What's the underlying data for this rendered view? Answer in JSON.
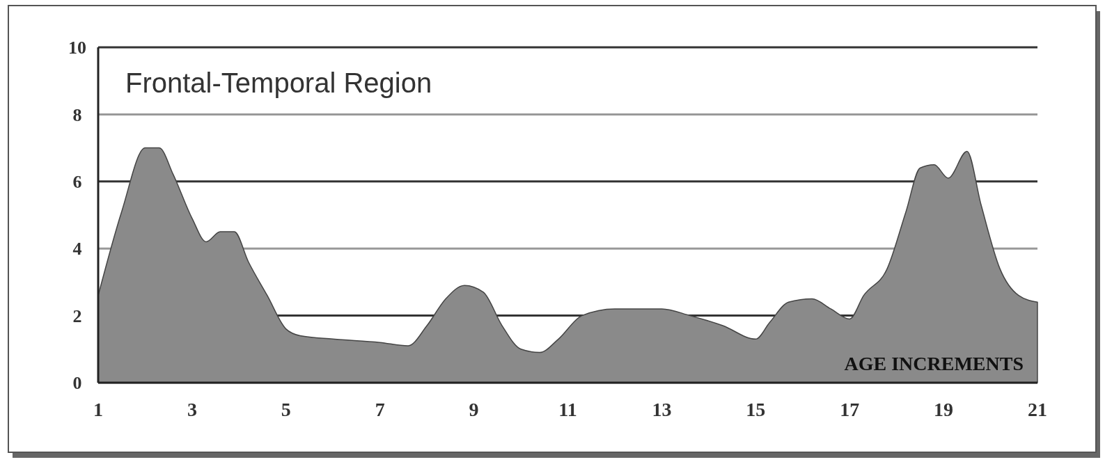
{
  "chart_data": {
    "type": "area",
    "title": "Frontal-Temporal Region",
    "xlabel": "AGE INCREMENTS",
    "x": [
      1,
      1.5,
      2,
      2.3,
      2.6,
      3,
      3.3,
      3.6,
      3.9,
      4.2,
      4.6,
      5,
      5.3,
      6,
      7,
      7.6,
      8,
      8.4,
      8.8,
      9.2,
      9.6,
      10,
      10.4,
      10.8,
      11.3,
      12,
      13,
      13.6,
      14.3,
      15,
      15.3,
      15.7,
      16.2,
      16.6,
      17,
      17.3,
      17.8,
      18.2,
      18.5,
      18.8,
      19.1,
      19.5,
      19.8,
      20.2,
      20.6,
      21
    ],
    "series": [
      {
        "color": "#8a8a8a",
        "values": [
          2.6,
          5.1,
          7.0,
          7.0,
          6.2,
          4.9,
          4.2,
          4.5,
          4.5,
          3.6,
          2.6,
          1.6,
          1.4,
          1.3,
          1.2,
          1.1,
          1.7,
          2.5,
          2.9,
          2.7,
          1.7,
          1.0,
          0.9,
          1.3,
          2.0,
          2.2,
          2.2,
          2.0,
          1.7,
          1.3,
          1.8,
          2.4,
          2.5,
          2.2,
          1.9,
          2.6,
          3.4,
          5.1,
          6.4,
          6.5,
          6.1,
          6.9,
          5.3,
          3.4,
          2.6,
          2.4
        ]
      }
    ],
    "xlim": [
      1,
      21
    ],
    "xticks": [
      1,
      3,
      5,
      7,
      9,
      11,
      13,
      15,
      17,
      19,
      21
    ],
    "ylim": [
      0,
      10
    ],
    "yticks": [
      0,
      2,
      4,
      6,
      8,
      10
    ],
    "grid": "y"
  }
}
